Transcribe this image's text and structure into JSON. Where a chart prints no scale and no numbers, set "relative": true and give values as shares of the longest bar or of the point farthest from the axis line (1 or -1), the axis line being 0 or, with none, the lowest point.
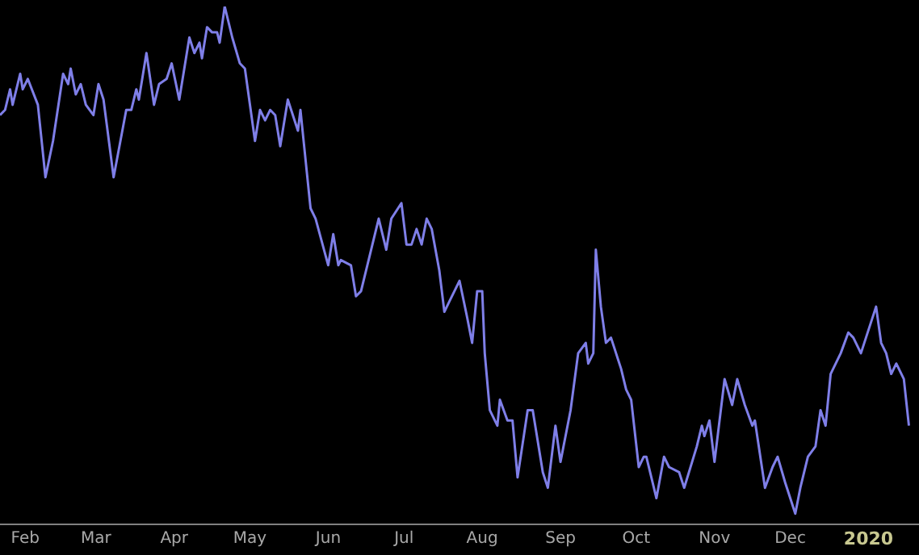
{
  "chart_data": {
    "type": "line",
    "relative": true,
    "color": "#7f7fe8",
    "marker": "none",
    "line_style": "solid",
    "xlim": [
      "2019-01-22",
      "2020-01-21"
    ],
    "xticks": [
      {
        "value": "2019-02-01",
        "label": "Feb"
      },
      {
        "value": "2019-03-01",
        "label": "Mar"
      },
      {
        "value": "2019-04-01",
        "label": "Apr"
      },
      {
        "value": "2019-05-01",
        "label": "May"
      },
      {
        "value": "2019-06-01",
        "label": "Jun"
      },
      {
        "value": "2019-07-01",
        "label": "Jul"
      },
      {
        "value": "2019-08-01",
        "label": "Aug"
      },
      {
        "value": "2019-09-01",
        "label": "Sep"
      },
      {
        "value": "2019-10-01",
        "label": "Oct"
      },
      {
        "value": "2019-11-01",
        "label": "Nov"
      },
      {
        "value": "2019-12-01",
        "label": "Dec"
      },
      {
        "value": "2020-01-01",
        "label": "2020"
      }
    ],
    "x": [
      "2019-01-22",
      "2019-01-24",
      "2019-01-26",
      "2019-01-27",
      "2019-01-30",
      "2019-01-31",
      "2019-02-02",
      "2019-02-06",
      "2019-02-09",
      "2019-02-12",
      "2019-02-16",
      "2019-02-18",
      "2019-02-19",
      "2019-02-21",
      "2019-02-23",
      "2019-02-25",
      "2019-02-28",
      "2019-03-02",
      "2019-03-04",
      "2019-03-08",
      "2019-03-13",
      "2019-03-15",
      "2019-03-17",
      "2019-03-18",
      "2019-03-21",
      "2019-03-24",
      "2019-03-26",
      "2019-03-29",
      "2019-03-31",
      "2019-04-03",
      "2019-04-07",
      "2019-04-09",
      "2019-04-11",
      "2019-04-12",
      "2019-04-14",
      "2019-04-16",
      "2019-04-18",
      "2019-04-19",
      "2019-04-21",
      "2019-04-24",
      "2019-04-27",
      "2019-04-29",
      "2019-05-03",
      "2019-05-05",
      "2019-05-07",
      "2019-05-09",
      "2019-05-11",
      "2019-05-13",
      "2019-05-16",
      "2019-05-20",
      "2019-05-21",
      "2019-05-25",
      "2019-05-27",
      "2019-06-01",
      "2019-06-03",
      "2019-06-05",
      "2019-06-06",
      "2019-06-10",
      "2019-06-12",
      "2019-06-14",
      "2019-06-18",
      "2019-06-21",
      "2019-06-24",
      "2019-06-26",
      "2019-06-30",
      "2019-07-02",
      "2019-07-04",
      "2019-07-06",
      "2019-07-08",
      "2019-07-10",
      "2019-07-12",
      "2019-07-15",
      "2019-07-17",
      "2019-07-19",
      "2019-07-23",
      "2019-07-26",
      "2019-07-28",
      "2019-07-30",
      "2019-08-01",
      "2019-08-02",
      "2019-08-04",
      "2019-08-07",
      "2019-08-08",
      "2019-08-11",
      "2019-08-13",
      "2019-08-15",
      "2019-08-19",
      "2019-08-21",
      "2019-08-25",
      "2019-08-27",
      "2019-08-30",
      "2019-09-01",
      "2019-09-05",
      "2019-09-08",
      "2019-09-11",
      "2019-09-12",
      "2019-09-14",
      "2019-09-15",
      "2019-09-17",
      "2019-09-19",
      "2019-09-21",
      "2019-09-25",
      "2019-09-27",
      "2019-09-29",
      "2019-10-02",
      "2019-10-04",
      "2019-10-05",
      "2019-10-09",
      "2019-10-12",
      "2019-10-14",
      "2019-10-18",
      "2019-10-20",
      "2019-10-25",
      "2019-10-27",
      "2019-10-28",
      "2019-10-30",
      "2019-11-01",
      "2019-11-05",
      "2019-11-08",
      "2019-11-10",
      "2019-11-13",
      "2019-11-16",
      "2019-11-17",
      "2019-11-21",
      "2019-11-24",
      "2019-11-26",
      "2019-11-29",
      "2019-12-01",
      "2019-12-03",
      "2019-12-05",
      "2019-12-08",
      "2019-12-11",
      "2019-12-13",
      "2019-12-15",
      "2019-12-17",
      "2019-12-21",
      "2019-12-24",
      "2019-12-26",
      "2019-12-29",
      "2019-12-31",
      "2020-01-02",
      "2020-01-04",
      "2020-01-06",
      "2020-01-08",
      "2020-01-10",
      "2020-01-12",
      "2020-01-15",
      "2020-01-17"
    ],
    "values": [
      0.79,
      0.8,
      0.84,
      0.81,
      0.87,
      0.84,
      0.86,
      0.81,
      0.67,
      0.74,
      0.87,
      0.85,
      0.88,
      0.83,
      0.85,
      0.81,
      0.79,
      0.85,
      0.82,
      0.67,
      0.8,
      0.8,
      0.84,
      0.82,
      0.91,
      0.81,
      0.85,
      0.86,
      0.89,
      0.82,
      0.94,
      0.91,
      0.93,
      0.9,
      0.96,
      0.95,
      0.95,
      0.93,
      1.0,
      0.94,
      0.89,
      0.88,
      0.74,
      0.8,
      0.78,
      0.8,
      0.79,
      0.73,
      0.82,
      0.76,
      0.8,
      0.61,
      0.59,
      0.5,
      0.56,
      0.5,
      0.51,
      0.5,
      0.44,
      0.45,
      0.53,
      0.59,
      0.53,
      0.59,
      0.62,
      0.54,
      0.54,
      0.57,
      0.54,
      0.59,
      0.57,
      0.49,
      0.41,
      0.43,
      0.47,
      0.4,
      0.35,
      0.45,
      0.45,
      0.33,
      0.22,
      0.19,
      0.24,
      0.2,
      0.2,
      0.09,
      0.22,
      0.22,
      0.1,
      0.07,
      0.19,
      0.12,
      0.22,
      0.33,
      0.35,
      0.31,
      0.33,
      0.53,
      0.42,
      0.35,
      0.36,
      0.3,
      0.26,
      0.24,
      0.11,
      0.13,
      0.13,
      0.05,
      0.13,
      0.11,
      0.1,
      0.07,
      0.15,
      0.19,
      0.17,
      0.2,
      0.12,
      0.28,
      0.23,
      0.28,
      0.23,
      0.19,
      0.2,
      0.07,
      0.11,
      0.13,
      0.08,
      0.05,
      0.02,
      0.07,
      0.13,
      0.15,
      0.22,
      0.19,
      0.29,
      0.33,
      0.37,
      0.36,
      0.33,
      0.36,
      0.39,
      0.42,
      0.35,
      0.33,
      0.29,
      0.31,
      0.28,
      0.19
    ]
  }
}
